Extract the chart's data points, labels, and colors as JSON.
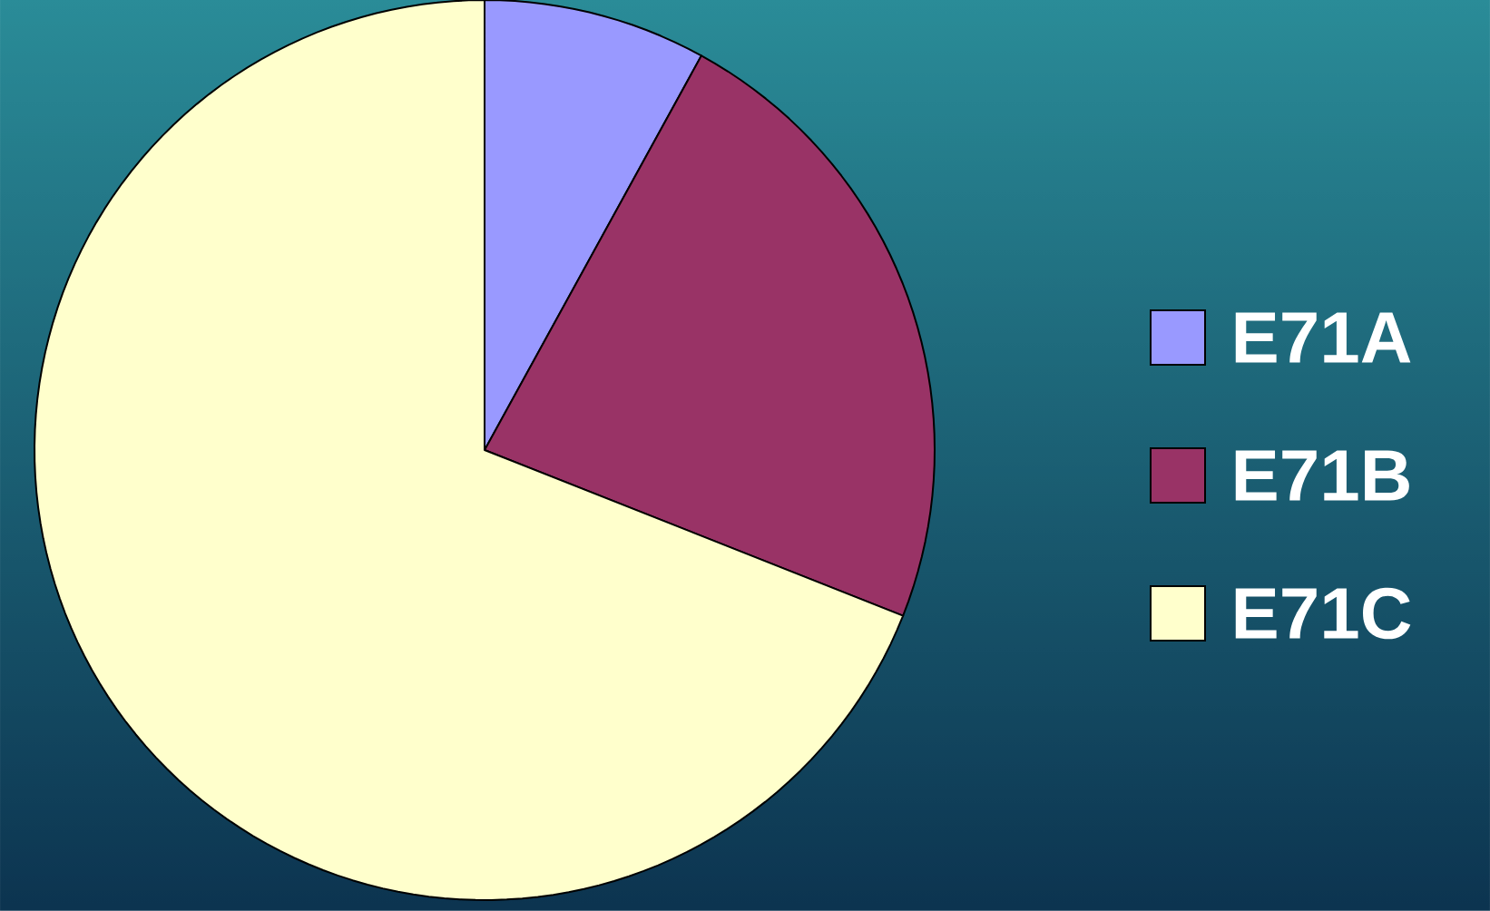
{
  "chart_data": {
    "type": "pie",
    "categories": [
      "E71A",
      "E71B",
      "E71C"
    ],
    "values": [
      8,
      23,
      69
    ],
    "colors": [
      "#9999ff",
      "#993366",
      "#ffffcc"
    ],
    "legend": "right"
  }
}
